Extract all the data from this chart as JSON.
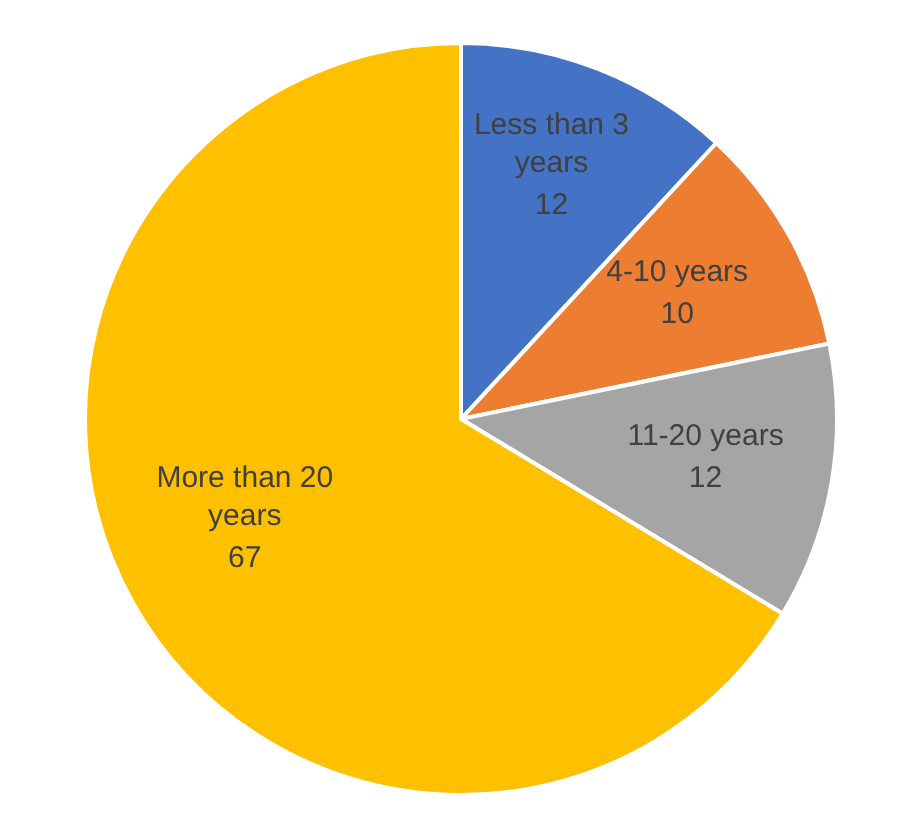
{
  "chart_data": {
    "type": "pie",
    "categories": [
      "Less than 3 years",
      "4-10 years",
      "11-20 years",
      "More than 20 years"
    ],
    "values": [
      12,
      10,
      12,
      67
    ],
    "colors": [
      "#4472c4",
      "#ed7d31",
      "#a5a5a5",
      "#ffc000"
    ],
    "data_labels": true
  }
}
